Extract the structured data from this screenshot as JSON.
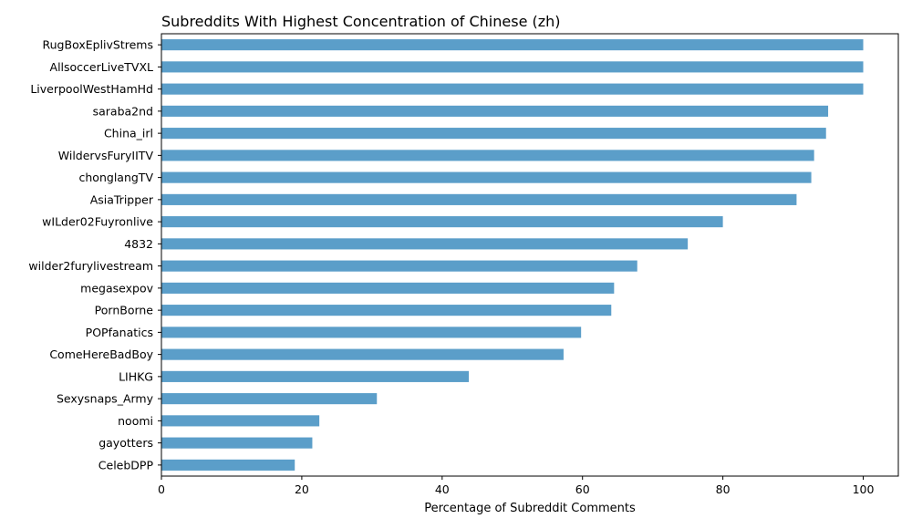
{
  "chart_data": {
    "type": "bar",
    "orientation": "horizontal",
    "title": "Subreddits With Highest Concentration of Chinese (zh)",
    "xlabel": "Percentage of Subreddit Comments",
    "ylabel": "",
    "xlim": [
      0,
      105
    ],
    "xticks": [
      "0",
      "20",
      "40",
      "60",
      "80",
      "100"
    ],
    "bar_color": "#5b9ec9",
    "grid": false,
    "categories": [
      "RugBoxEplivStrems",
      "AllsoccerLiveTVXL",
      "LiverpoolWestHamHd",
      "saraba2nd",
      "China_irl",
      "WildervsFuryIITV",
      "chonglangTV",
      "AsiaTripper",
      "wILder02Fuyronlive",
      "4832",
      "wilder2furylivestream",
      "megasexpov",
      "PornBorne",
      "POPfanatics",
      "ComeHereBadBoy",
      "LIHKG",
      "Sexysnaps_Army",
      "noomi",
      "gayotters",
      "CelebDPP"
    ],
    "values": [
      100,
      100,
      100,
      95,
      94.7,
      93,
      92.6,
      90.5,
      80,
      75,
      67.8,
      64.5,
      64.1,
      59.8,
      57.3,
      43.8,
      30.7,
      22.5,
      21.5,
      19
    ]
  }
}
